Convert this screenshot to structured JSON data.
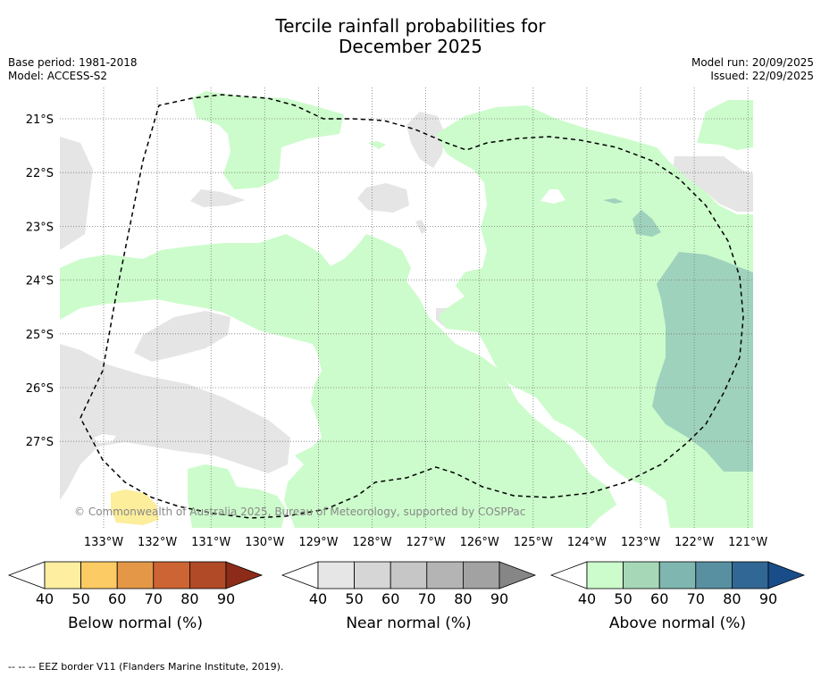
{
  "title": {
    "line1": "Tercile rainfall probabilities for",
    "line2": "December 2025"
  },
  "meta": {
    "base_period": "Base period: 1981-2018",
    "model": "Model: ACCESS-S2",
    "model_run": "Model run: 20/09/2025",
    "issued": "Issued: 22/09/2025"
  },
  "map": {
    "lat_labels": [
      "21°S",
      "22°S",
      "23°S",
      "24°S",
      "25°S",
      "26°S",
      "27°S"
    ],
    "lon_labels": [
      "133°W",
      "132°W",
      "131°W",
      "130°W",
      "129°W",
      "128°W",
      "127°W",
      "126°W",
      "125°W",
      "124°W",
      "123°W",
      "122°W",
      "121°W"
    ],
    "copyright": "© Commonwealth of Australia 2025, Bureau of Meteorology, supported by COSPPac",
    "colors": {
      "near_40": "#e5e5e5",
      "above_40": "#ccfccb",
      "above_60": "#9fd2bd",
      "below_40": "#fcee9b"
    }
  },
  "colorbars": [
    {
      "name": "below",
      "label": "Below normal (%)",
      "ticks": [
        "40",
        "50",
        "60",
        "70",
        "80",
        "90"
      ],
      "colors": [
        "#ffffff",
        "#fdeea0",
        "#fdcb64",
        "#e39747",
        "#cc6433",
        "#b04a27",
        "#8c2b17"
      ]
    },
    {
      "name": "near",
      "label": "Near normal (%)",
      "ticks": [
        "40",
        "50",
        "60",
        "70",
        "80",
        "90"
      ],
      "colors": [
        "#ffffff",
        "#e6e6e6",
        "#d6d6d6",
        "#c6c6c6",
        "#b4b4b4",
        "#a2a2a2",
        "#868686"
      ]
    },
    {
      "name": "above",
      "label": "Above normal (%)",
      "ticks": [
        "40",
        "50",
        "60",
        "70",
        "80",
        "90"
      ],
      "colors": [
        "#ffffff",
        "#ccfccb",
        "#a6d8b8",
        "#7fb7b0",
        "#5890a2",
        "#316795",
        "#194d8a"
      ]
    }
  ],
  "footer": "--  --  -- EEZ border V11 (Flanders Marine Institute, 2019)."
}
